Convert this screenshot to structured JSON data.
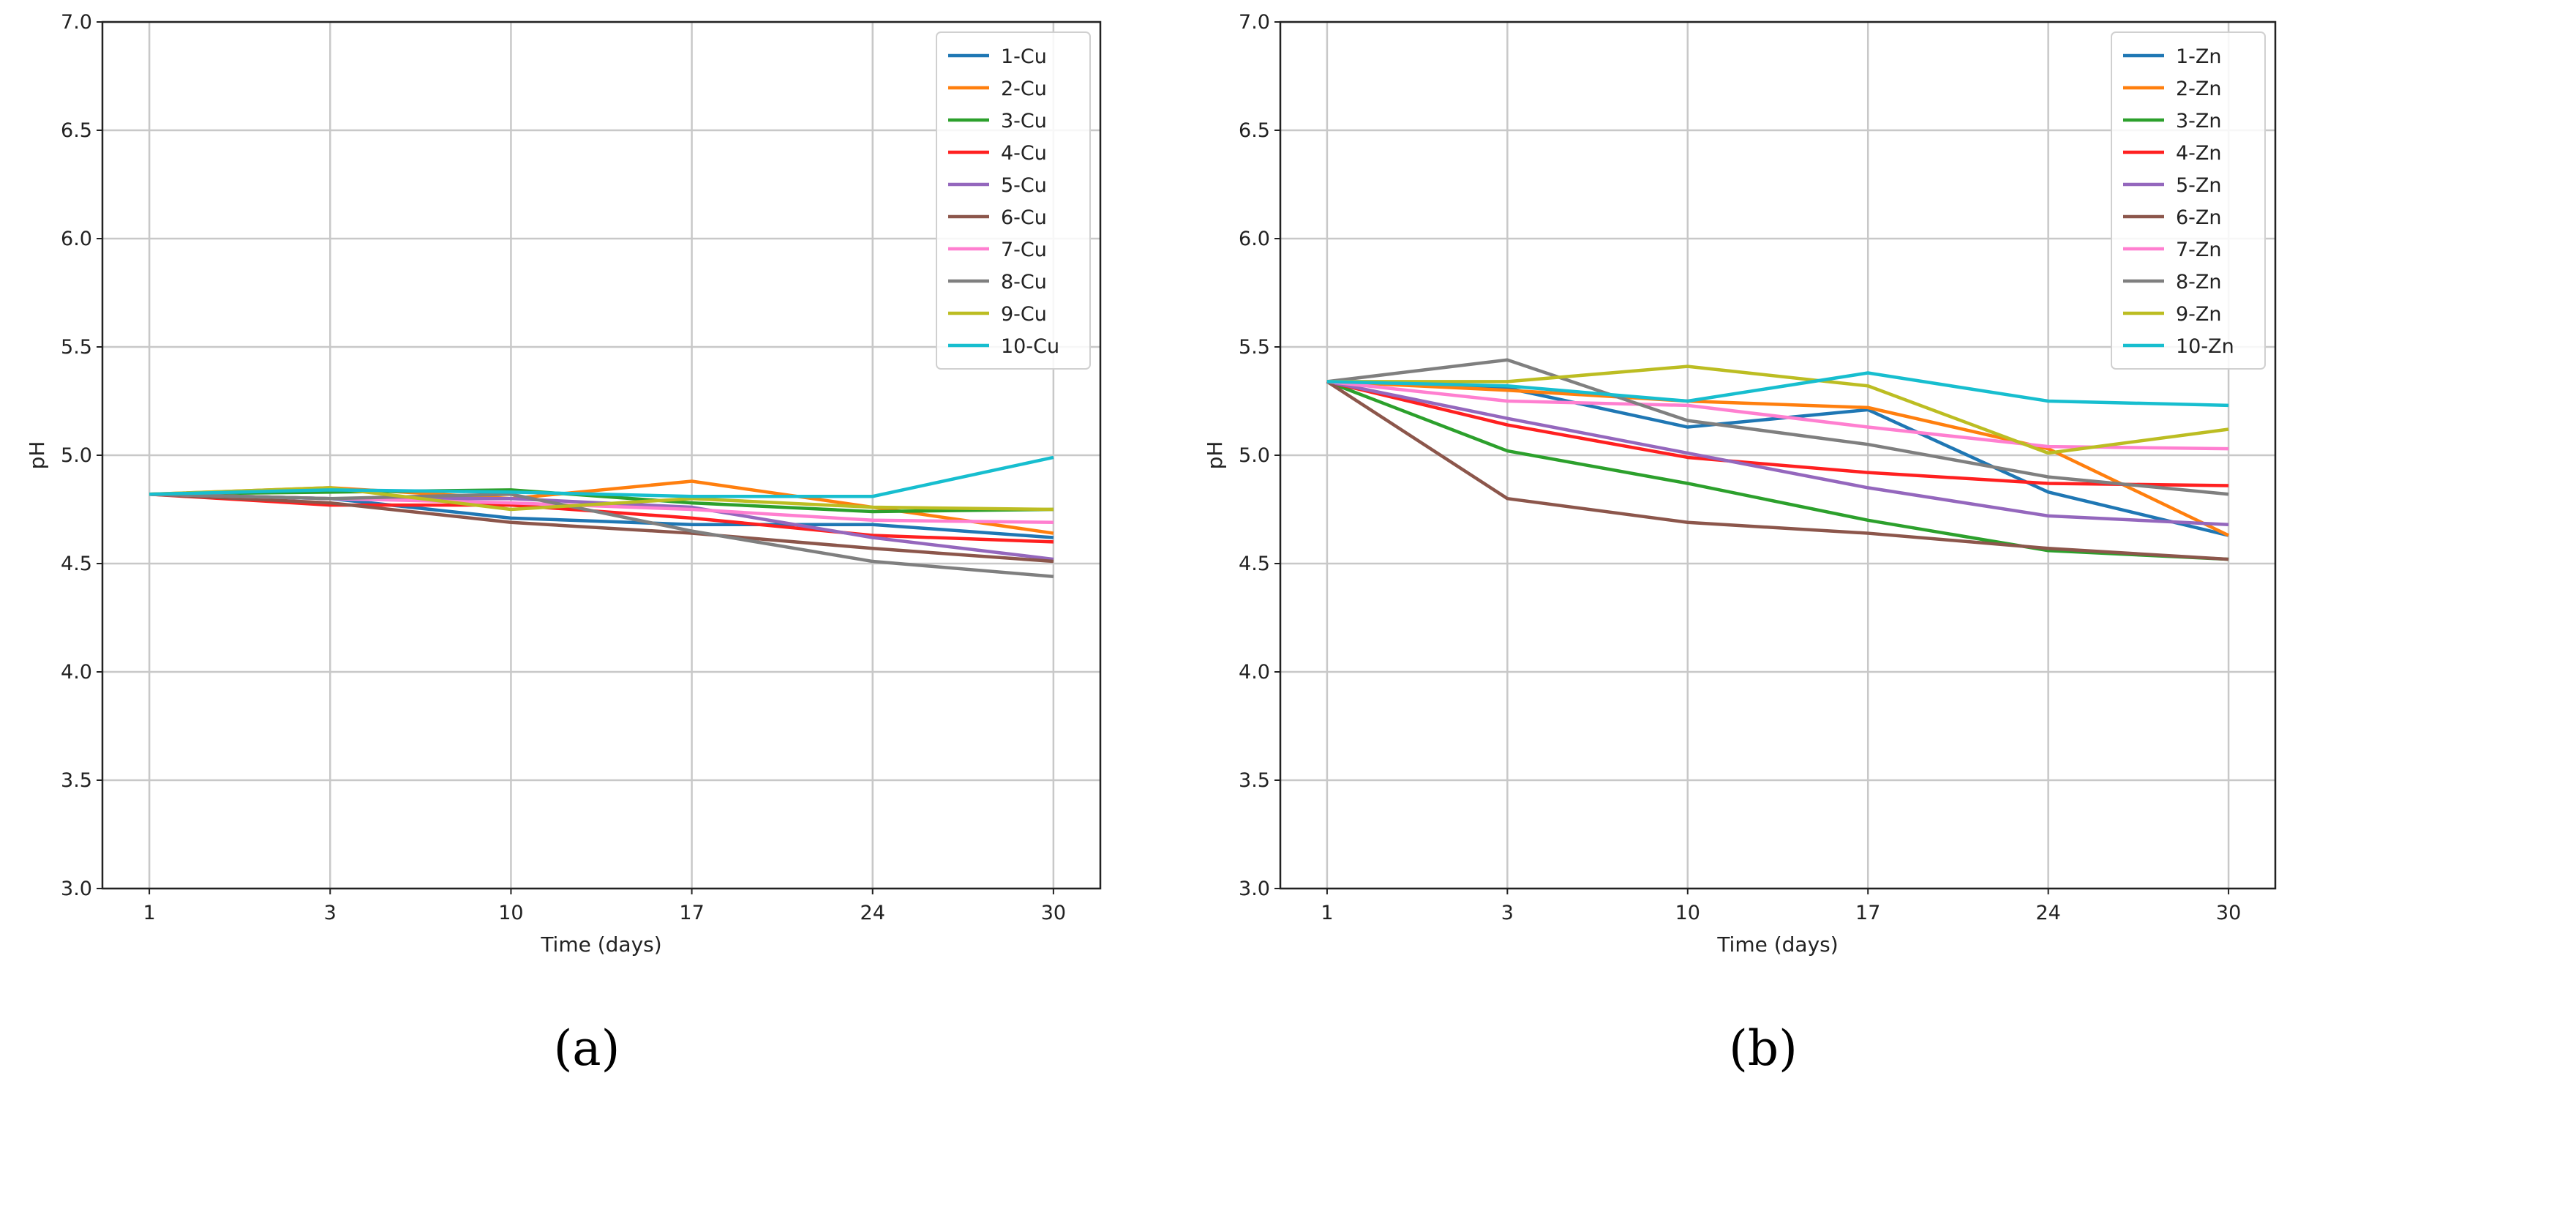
{
  "chart_data": [
    {
      "type": "line",
      "panel_label": "(a)",
      "xlabel": "Time (days)",
      "ylabel": "pH",
      "categories": [
        "1",
        "3",
        "10",
        "17",
        "24",
        "30"
      ],
      "ylim": [
        3.0,
        7.0
      ],
      "yticks": [
        "3.0",
        "3.5",
        "4.0",
        "4.5",
        "5.0",
        "5.5",
        "6.0",
        "6.5",
        "7.0"
      ],
      "grid": true,
      "legend": "top-right",
      "series": [
        {
          "name": "1-Cu",
          "color": "#1f77b4",
          "values": [
            4.82,
            4.8,
            4.71,
            4.68,
            4.68,
            4.62
          ]
        },
        {
          "name": "2-Cu",
          "color": "#ff7f0e",
          "values": [
            4.82,
            4.85,
            4.8,
            4.88,
            4.76,
            4.64
          ]
        },
        {
          "name": "3-Cu",
          "color": "#2ca02c",
          "values": [
            4.82,
            4.83,
            4.84,
            4.78,
            4.74,
            4.75
          ]
        },
        {
          "name": "4-Cu",
          "color": "#ff2020",
          "values": [
            4.82,
            4.77,
            4.77,
            4.71,
            4.63,
            4.6
          ]
        },
        {
          "name": "5-Cu",
          "color": "#9467bd",
          "values": [
            4.82,
            4.8,
            4.8,
            4.76,
            4.62,
            4.52
          ]
        },
        {
          "name": "6-Cu",
          "color": "#8c564b",
          "values": [
            4.82,
            4.78,
            4.69,
            4.64,
            4.57,
            4.51
          ]
        },
        {
          "name": "7-Cu",
          "color": "#ff7fd0",
          "values": [
            4.82,
            4.8,
            4.78,
            4.75,
            4.7,
            4.69
          ]
        },
        {
          "name": "8-Cu",
          "color": "#7f7f7f",
          "values": [
            4.82,
            4.8,
            4.82,
            4.65,
            4.51,
            4.44
          ]
        },
        {
          "name": "9-Cu",
          "color": "#bcbd22",
          "values": [
            4.82,
            4.85,
            4.75,
            4.8,
            4.76,
            4.75
          ]
        },
        {
          "name": "10-Cu",
          "color": "#17becf",
          "values": [
            4.82,
            4.84,
            4.83,
            4.81,
            4.81,
            4.99
          ]
        }
      ]
    },
    {
      "type": "line",
      "panel_label": "(b)",
      "xlabel": "Time (days)",
      "ylabel": "pH",
      "categories": [
        "1",
        "3",
        "10",
        "17",
        "24",
        "30"
      ],
      "ylim": [
        3.0,
        7.0
      ],
      "yticks": [
        "3.0",
        "3.5",
        "4.0",
        "4.5",
        "5.0",
        "5.5",
        "6.0",
        "6.5",
        "7.0"
      ],
      "grid": true,
      "legend": "top-right",
      "series": [
        {
          "name": "1-Zn",
          "color": "#1f77b4",
          "values": [
            5.34,
            5.31,
            5.13,
            5.21,
            4.83,
            4.63
          ]
        },
        {
          "name": "2-Zn",
          "color": "#ff7f0e",
          "values": [
            5.34,
            5.3,
            5.25,
            5.22,
            5.03,
            4.63
          ]
        },
        {
          "name": "3-Zn",
          "color": "#2ca02c",
          "values": [
            5.34,
            5.02,
            4.87,
            4.7,
            4.56,
            4.52
          ]
        },
        {
          "name": "4-Zn",
          "color": "#ff2020",
          "values": [
            5.34,
            5.14,
            4.99,
            4.92,
            4.87,
            4.86
          ]
        },
        {
          "name": "5-Zn",
          "color": "#9467bd",
          "values": [
            5.34,
            5.17,
            5.01,
            4.85,
            4.72,
            4.68
          ]
        },
        {
          "name": "6-Zn",
          "color": "#8c564b",
          "values": [
            5.34,
            4.8,
            4.69,
            4.64,
            4.57,
            4.52
          ]
        },
        {
          "name": "7-Zn",
          "color": "#ff7fd0",
          "values": [
            5.34,
            5.25,
            5.23,
            5.13,
            5.04,
            5.03
          ]
        },
        {
          "name": "8-Zn",
          "color": "#7f7f7f",
          "values": [
            5.34,
            5.44,
            5.16,
            5.05,
            4.9,
            4.82
          ]
        },
        {
          "name": "9-Zn",
          "color": "#bcbd22",
          "values": [
            5.34,
            5.34,
            5.41,
            5.32,
            5.01,
            5.12
          ]
        },
        {
          "name": "10-Zn",
          "color": "#17becf",
          "values": [
            5.34,
            5.32,
            5.25,
            5.38,
            5.25,
            5.23
          ]
        }
      ]
    }
  ]
}
